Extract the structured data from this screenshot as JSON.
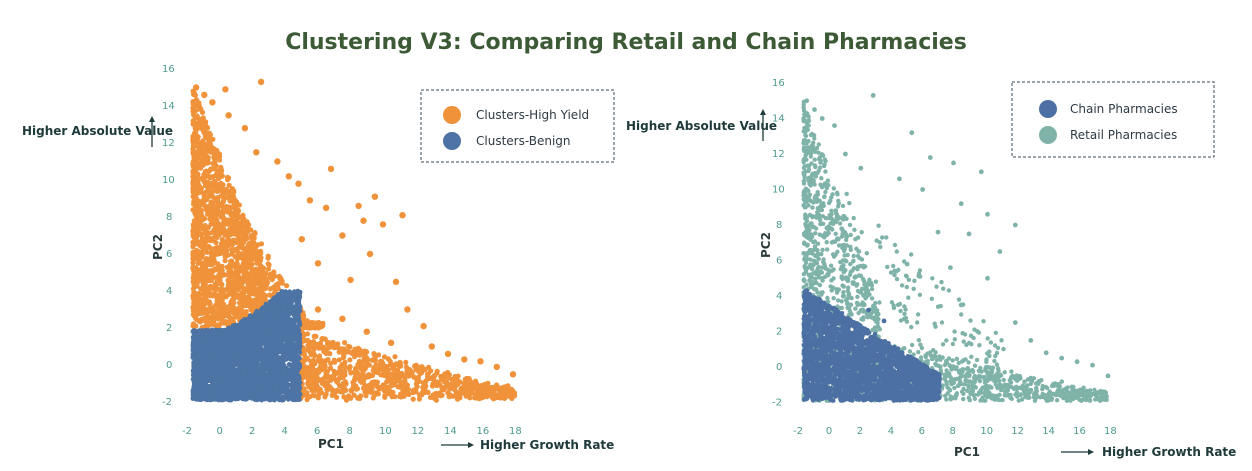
{
  "title": "Clustering V3: Comparing Retail and Chain Pharmacies",
  "chart_data": [
    {
      "type": "scatter",
      "xlabel": "PC1",
      "ylabel": "PC2",
      "x_annotation": "Higher Growth Rate",
      "y_annotation": "Higher Absolute Value",
      "xlim": [
        -2,
        19
      ],
      "ylim": [
        -2,
        16
      ],
      "x_ticks": [
        "-2",
        "0",
        "2",
        "4",
        "6",
        "8",
        "10",
        "12",
        "14",
        "16",
        "18"
      ],
      "y_ticks": [
        "-2",
        "0",
        "2",
        "4",
        "6",
        "8",
        "10",
        "12",
        "14",
        "16"
      ],
      "legend_placement": "top-right",
      "grid": false,
      "series": [
        {
          "name": "Clusters-High Yield",
          "color": "#f0923a",
          "points": [
            [
              -1.5,
              15.0
            ],
            [
              -1.0,
              14.6
            ],
            [
              -0.5,
              14.2
            ],
            [
              0.3,
              14.9
            ],
            [
              -1.2,
              13.0
            ],
            [
              0.5,
              13.5
            ],
            [
              1.5,
              12.8
            ],
            [
              2.5,
              15.3
            ],
            [
              2.2,
              11.5
            ],
            [
              3.5,
              11.0
            ],
            [
              4.2,
              10.2
            ],
            [
              4.8,
              9.8
            ],
            [
              6.8,
              10.6
            ],
            [
              5.5,
              8.9
            ],
            [
              6.5,
              8.5
            ],
            [
              8.5,
              8.6
            ],
            [
              9.5,
              9.1
            ],
            [
              11.2,
              8.1
            ],
            [
              8.8,
              7.8
            ],
            [
              7.5,
              7.0
            ],
            [
              10.0,
              7.6
            ],
            [
              5.0,
              6.8
            ],
            [
              9.2,
              6.0
            ],
            [
              6.0,
              5.5
            ],
            [
              8.0,
              4.6
            ],
            [
              10.8,
              4.5
            ],
            [
              11.5,
              3.0
            ],
            [
              12.5,
              2.1
            ],
            [
              13.0,
              1.0
            ],
            [
              14.0,
              0.6
            ],
            [
              15.0,
              0.3
            ],
            [
              16.0,
              0.2
            ],
            [
              17.0,
              -0.1
            ],
            [
              18.0,
              -0.5
            ],
            [
              6.0,
              3.0
            ],
            [
              7.5,
              2.5
            ],
            [
              9.0,
              1.8
            ],
            [
              10.5,
              1.2
            ]
          ]
        },
        {
          "name": "Clusters-Benign",
          "color": "#4d74a4",
          "points": [
            [
              -1.5,
              1.5
            ],
            [
              -1.0,
              0.5
            ],
            [
              0.0,
              -1.0
            ],
            [
              1.0,
              0.8
            ],
            [
              2.0,
              1.6
            ],
            [
              3.0,
              2.3
            ],
            [
              3.8,
              3.2
            ],
            [
              4.3,
              3.8
            ],
            [
              4.8,
              3.0
            ],
            [
              4.9,
              1.0
            ],
            [
              4.9,
              -1.6
            ],
            [
              2.5,
              -1.5
            ],
            [
              -1.6,
              -1.6
            ]
          ]
        },
        {
          "name": "Chain Pharmacies",
          "color": "#4c70a3",
          "points": [
            [
              -1.5,
              4.3
            ],
            [
              -1.0,
              3.6
            ],
            [
              0.0,
              3.0
            ],
            [
              1.0,
              2.4
            ],
            [
              2.0,
              1.8
            ],
            [
              3.0,
              1.3
            ],
            [
              4.0,
              0.8
            ],
            [
              5.0,
              0.4
            ],
            [
              6.0,
              0.1
            ],
            [
              6.8,
              -0.3
            ],
            [
              5.5,
              -1.2
            ],
            [
              3.0,
              -1.6
            ],
            [
              0.0,
              -1.8
            ],
            [
              -1.6,
              -1.8
            ],
            [
              2.5,
              3.2
            ],
            [
              3.5,
              2.6
            ]
          ]
        },
        {
          "name": "Retail Pharmacies",
          "color": "#7fb3a9",
          "points": [
            [
              -1.5,
              15.0
            ],
            [
              -1.0,
              14.5
            ],
            [
              -0.5,
              14.0
            ],
            [
              0.3,
              13.6
            ],
            [
              -1.2,
              12.2
            ],
            [
              1.0,
              12.0
            ],
            [
              2.0,
              11.2
            ],
            [
              2.8,
              15.3
            ],
            [
              5.3,
              13.2
            ],
            [
              6.5,
              11.8
            ],
            [
              8.0,
              11.5
            ],
            [
              9.8,
              11.0
            ],
            [
              4.5,
              10.6
            ],
            [
              6.0,
              10.0
            ],
            [
              8.5,
              9.2
            ],
            [
              10.2,
              8.6
            ],
            [
              12.0,
              8.0
            ],
            [
              7.0,
              7.6
            ],
            [
              9.0,
              7.5
            ],
            [
              11.0,
              6.5
            ],
            [
              5.0,
              5.8
            ],
            [
              7.8,
              5.6
            ],
            [
              10.2,
              5.0
            ],
            [
              8.5,
              3.5
            ],
            [
              12.0,
              2.5
            ],
            [
              13.0,
              1.5
            ],
            [
              14.0,
              0.8
            ],
            [
              15.0,
              0.5
            ],
            [
              16.0,
              0.3
            ],
            [
              17.0,
              0.1
            ],
            [
              18.0,
              -0.5
            ],
            [
              9.0,
              -0.5
            ],
            [
              11.0,
              -1.0
            ],
            [
              13.0,
              -1.3
            ]
          ]
        }
      ]
    }
  ],
  "legends": [
    [
      {
        "label": "Clusters-High Yield",
        "color": "#f0923a"
      },
      {
        "label": "Clusters-Benign",
        "color": "#4d74a4"
      }
    ],
    [
      {
        "label": "Chain Pharmacies",
        "color": "#4c70a3"
      },
      {
        "label": "Retail Pharmacies",
        "color": "#7fb3a9"
      }
    ]
  ],
  "colors": {
    "orange": "#f0923a",
    "benign_blue": "#4d74a4",
    "chain_blue": "#4c70a3",
    "retail_teal": "#7fb3a9",
    "tick_teal": "#4e9a8e",
    "title_green": "#3d5a36"
  }
}
